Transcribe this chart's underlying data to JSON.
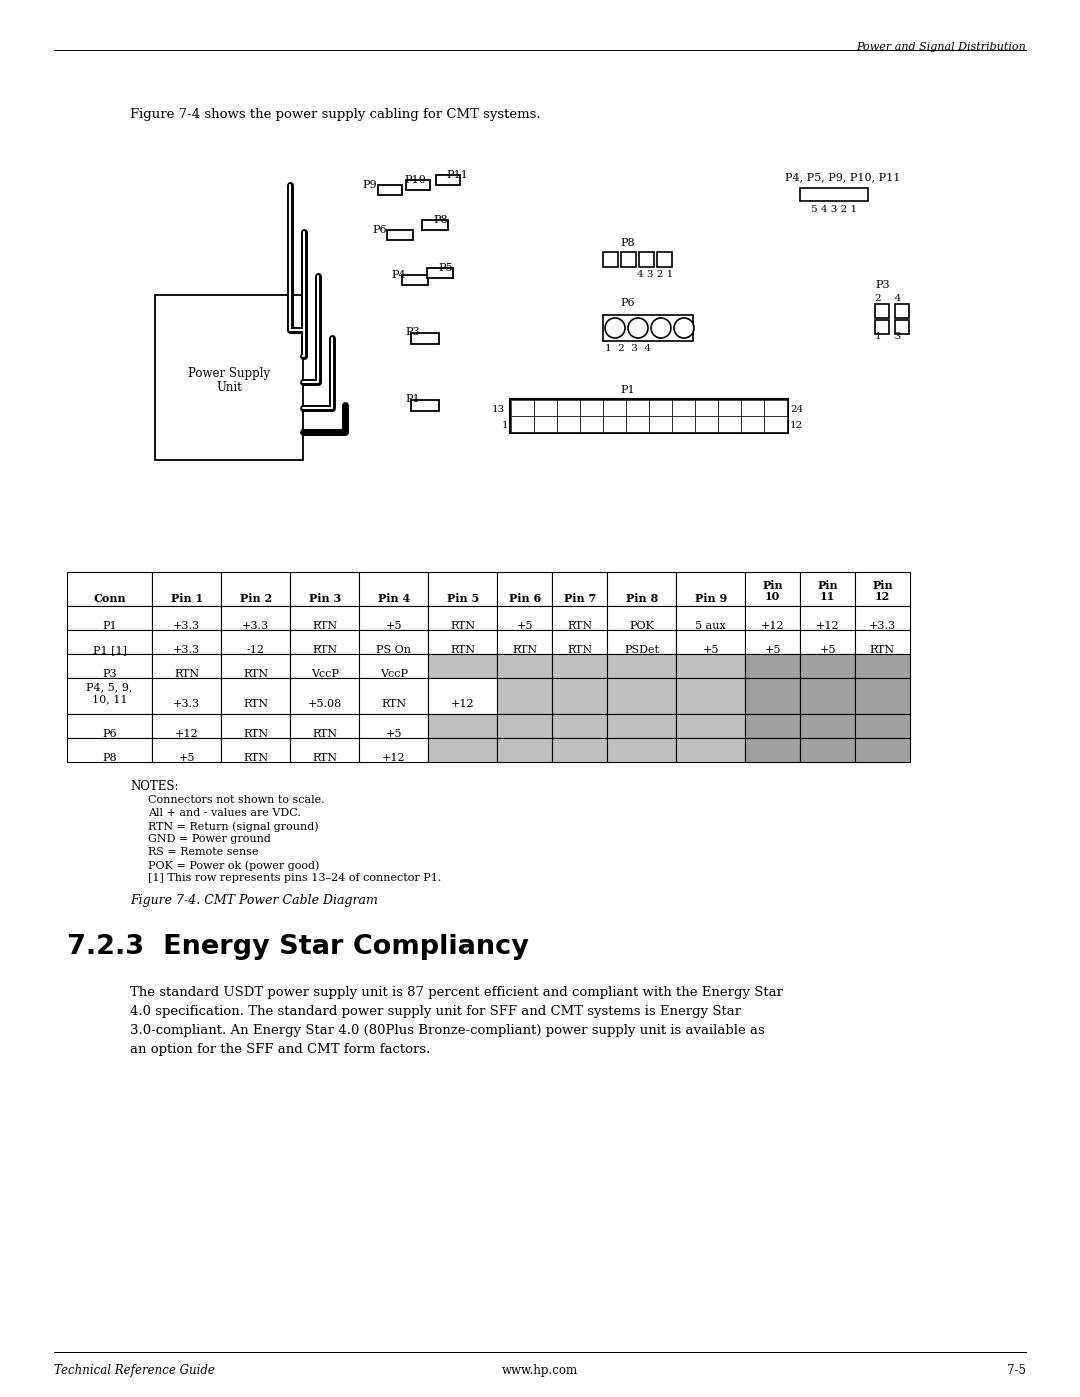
{
  "page_header_right": "Power and Signal Distribution",
  "intro_text": "Figure 7-4 shows the power supply cabling for CMT systems.",
  "figure_caption": "Figure 7-4. CMT Power Cable Diagram",
  "section_title": "7.2.3  Energy Star Compliancy",
  "body_text": "The standard USDT power supply unit is 87 percent efficient and compliant with the Energy Star\n4.0 specification. The standard power supply unit for SFF and CMT systems is Energy Star\n3.0-compliant. An Energy Star 4.0 (80Plus Bronze-compliant) power supply unit is available as\nan option for the SFF and CMT form factors.",
  "notes_title": "NOTES:",
  "notes_lines": [
    "Connectors not shown to scale.",
    "All + and - values are VDC.",
    "RTN = Return (signal ground)",
    "GND = Power ground",
    "RS = Remote sense",
    "POK = Power ok (power good)",
    "[1] This row represents pins 13–24 of connector P1."
  ],
  "footer_left": "Technical Reference Guide",
  "footer_center": "www.hp.com",
  "footer_right": "7-5",
  "table_headers": [
    "Conn",
    "Pin 1",
    "Pin 2",
    "Pin 3",
    "Pin 4",
    "Pin 5",
    "Pin 6",
    "Pin 7",
    "Pin 8",
    "Pin 9",
    "Pin\n10",
    "Pin\n11",
    "Pin\n12"
  ],
  "table_rows": [
    [
      "P1",
      "+3.3",
      "+3.3",
      "RTN",
      "+5",
      "RTN",
      "+5",
      "RTN",
      "POK",
      "5 aux",
      "+12",
      "+12",
      "+3.3"
    ],
    [
      "P1 [1]",
      "+3.3",
      "-12",
      "RTN",
      "PS On",
      "RTN",
      "RTN",
      "RTN",
      "PSDet",
      "+5",
      "+5",
      "+5",
      "RTN"
    ],
    [
      "P3",
      "RTN",
      "RTN",
      "VccP",
      "VccP",
      "",
      "",
      "",
      "",
      "",
      "",
      "",
      ""
    ],
    [
      "P4, 5, 9,\n10, 11",
      "+3.3",
      "RTN",
      "+5.08",
      "RTN",
      "+12",
      "",
      "",
      "",
      "",
      "",
      "",
      ""
    ],
    [
      "P6",
      "+12",
      "RTN",
      "RTN",
      "+5",
      "",
      "",
      "",
      "",
      "",
      "",
      "",
      ""
    ],
    [
      "P8",
      "+5",
      "RTN",
      "RTN",
      "+12",
      "",
      "",
      "",
      "",
      "",
      "",
      "",
      ""
    ]
  ],
  "gray_fill": "#c0c0c0",
  "dark_gray": "#a0a0a0",
  "bg_color": "#ffffff"
}
